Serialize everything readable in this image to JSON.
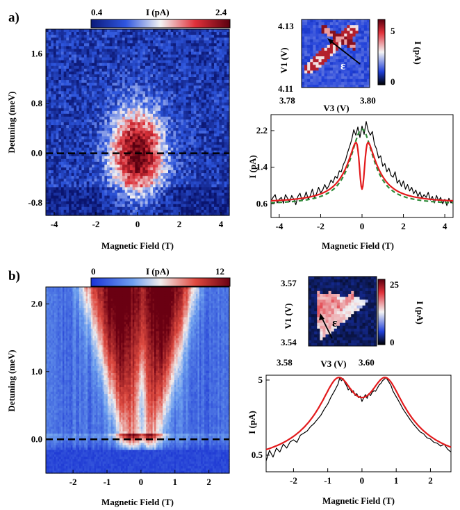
{
  "chart_data": [
    {
      "id": "a_map",
      "type": "heatmap",
      "panel_label": "a)",
      "colorbar": {
        "title": "I (pA)",
        "min_label": "0.4",
        "max_label": "2.4",
        "range": [
          0.4,
          2.4
        ]
      },
      "xlabel": "Magnetic Field (T)",
      "ylabel": "Detuning (meV)",
      "xlim": [
        -4.4,
        4.4
      ],
      "ylim": [
        -1.0,
        2.0
      ],
      "xticks": [
        "-4",
        "-2",
        "0",
        "2",
        "4"
      ],
      "yticks": [
        "-0.8",
        "0.0",
        "0.8",
        "1.6"
      ],
      "dashed_line_y": 0.0,
      "peak": {
        "x_center": 0.0,
        "y_center": 0.0,
        "x_width": 0.9,
        "y_width": 0.5,
        "peak_value": 2.4,
        "background": 0.7
      }
    },
    {
      "id": "a_inset",
      "type": "heatmap",
      "xlabel": "V3 (V)",
      "ylabel": "V1 (V)",
      "xticks": [
        "3.78",
        "3.80"
      ],
      "yticks": [
        "4.13",
        "4.11"
      ],
      "colorbar": {
        "title": "I (pA)",
        "ticks": [
          "5",
          "0"
        ],
        "range": [
          0,
          6
        ]
      },
      "arrow_label": "ε"
    },
    {
      "id": "a_trace",
      "type": "line",
      "xlabel": "Magnetic Field (T)",
      "ylabel": "I (pA)",
      "xlim": [
        -4.4,
        4.4
      ],
      "ylim": [
        0.3,
        2.55
      ],
      "xticks": [
        "-4",
        "-2",
        "0",
        "2",
        "4"
      ],
      "yticks": [
        "0.6",
        "1.4",
        "2.2"
      ],
      "series": [
        {
          "role": "data",
          "color": "#000000",
          "values": [
            [
              -4.4,
              0.66
            ],
            [
              -4.3,
              0.74
            ],
            [
              -4.2,
              0.8
            ],
            [
              -4.1,
              0.62
            ],
            [
              -4.0,
              0.7
            ],
            [
              -3.9,
              0.74
            ],
            [
              -3.8,
              0.61
            ],
            [
              -3.7,
              0.8
            ],
            [
              -3.6,
              0.72
            ],
            [
              -3.5,
              0.64
            ],
            [
              -3.4,
              0.78
            ],
            [
              -3.3,
              0.7
            ],
            [
              -3.2,
              0.58
            ],
            [
              -3.1,
              0.76
            ],
            [
              -3.0,
              0.83
            ],
            [
              -2.9,
              0.67
            ],
            [
              -2.8,
              0.72
            ],
            [
              -2.7,
              0.86
            ],
            [
              -2.6,
              0.7
            ],
            [
              -2.5,
              0.78
            ],
            [
              -2.4,
              0.92
            ],
            [
              -2.3,
              0.74
            ],
            [
              -2.2,
              0.82
            ],
            [
              -2.1,
              0.96
            ],
            [
              -2.0,
              0.84
            ],
            [
              -1.9,
              0.9
            ],
            [
              -1.8,
              1.02
            ],
            [
              -1.7,
              0.92
            ],
            [
              -1.6,
              1.0
            ],
            [
              -1.5,
              1.12
            ],
            [
              -1.4,
              1.06
            ],
            [
              -1.3,
              1.2
            ],
            [
              -1.2,
              1.16
            ],
            [
              -1.1,
              1.32
            ],
            [
              -1.0,
              1.3
            ],
            [
              -0.9,
              1.46
            ],
            [
              -0.8,
              1.55
            ],
            [
              -0.7,
              1.72
            ],
            [
              -0.6,
              1.85
            ],
            [
              -0.5,
              2.0
            ],
            [
              -0.4,
              2.22
            ],
            [
              -0.3,
              2.1
            ],
            [
              -0.2,
              2.28
            ],
            [
              -0.1,
              2.05
            ],
            [
              0.0,
              2.3
            ],
            [
              0.1,
              2.12
            ],
            [
              0.2,
              2.4
            ],
            [
              0.3,
              2.2
            ],
            [
              0.4,
              2.1
            ],
            [
              0.5,
              2.18
            ],
            [
              0.6,
              1.9
            ],
            [
              0.7,
              1.8
            ],
            [
              0.8,
              1.6
            ],
            [
              0.9,
              1.65
            ],
            [
              1.0,
              1.42
            ],
            [
              1.1,
              1.48
            ],
            [
              1.2,
              1.3
            ],
            [
              1.3,
              1.38
            ],
            [
              1.4,
              1.22
            ],
            [
              1.5,
              1.18
            ],
            [
              1.6,
              1.3
            ],
            [
              1.7,
              1.05
            ],
            [
              1.8,
              1.12
            ],
            [
              1.9,
              0.98
            ],
            [
              2.0,
              1.1
            ],
            [
              2.1,
              0.92
            ],
            [
              2.2,
              1.02
            ],
            [
              2.3,
              0.88
            ],
            [
              2.4,
              0.96
            ],
            [
              2.5,
              0.82
            ],
            [
              2.6,
              0.9
            ],
            [
              2.7,
              0.76
            ],
            [
              2.8,
              0.86
            ],
            [
              2.9,
              0.72
            ],
            [
              3.0,
              0.8
            ],
            [
              3.1,
              0.74
            ],
            [
              3.2,
              0.85
            ],
            [
              3.3,
              0.68
            ],
            [
              3.4,
              0.76
            ],
            [
              3.5,
              0.62
            ],
            [
              3.6,
              0.78
            ],
            [
              3.7,
              0.66
            ],
            [
              3.8,
              0.74
            ],
            [
              3.9,
              0.6
            ],
            [
              4.0,
              0.7
            ],
            [
              4.1,
              0.56
            ],
            [
              4.2,
              0.72
            ],
            [
              4.3,
              0.62
            ],
            [
              4.4,
              0.68
            ]
          ]
        },
        {
          "role": "fit",
          "color": "#e31a1c",
          "model": "double_lorentzian_dip",
          "params": {
            "base": 0.62,
            "amp": 1.6,
            "width": 0.75,
            "dip_depth": 1.3,
            "dip_width": 0.12
          }
        },
        {
          "role": "fit",
          "color": "#2e8b3a",
          "dashed": true,
          "model": "lorentzian",
          "params": {
            "base": 0.58,
            "amp": 1.65,
            "width": 0.7
          }
        }
      ]
    },
    {
      "id": "b_map",
      "type": "heatmap",
      "panel_label": "b)",
      "colorbar": {
        "title": "I (pA)",
        "min_label": "0",
        "max_label": "12",
        "range": [
          0,
          12
        ]
      },
      "xlabel": "Magnetic Field (T)",
      "ylabel": "Detuning (meV)",
      "xlim": [
        -2.8,
        2.6
      ],
      "ylim": [
        -0.5,
        2.25
      ],
      "xticks": [
        "-2",
        "-1",
        "0",
        "1",
        "2"
      ],
      "yticks": [
        "0.0",
        "1.0",
        "2.0"
      ],
      "dashed_line_y": 0.0
    },
    {
      "id": "b_inset",
      "type": "heatmap",
      "xlabel": "V3 (V)",
      "ylabel": "V1 (V)",
      "xticks": [
        "3.58",
        "3.60"
      ],
      "yticks": [
        "3.57",
        "3.54"
      ],
      "colorbar": {
        "title": "I (pA)",
        "ticks": [
          "25",
          "0"
        ],
        "range": [
          0,
          28
        ]
      },
      "arrow_label": "ε"
    },
    {
      "id": "b_trace",
      "type": "line",
      "xlabel": "Magnetic Field (T)",
      "ylabel": "I (pA)",
      "xlim": [
        -2.8,
        2.6
      ],
      "ylim": [
        0.3,
        5.8
      ],
      "xticks": [
        "-2",
        "-1",
        "0",
        "1",
        "2"
      ],
      "yticks": [
        "0.5",
        "5"
      ],
      "series": [
        {
          "role": "data",
          "color": "#000000",
          "values": [
            [
              -2.8,
              0.42
            ],
            [
              -2.7,
              0.58
            ],
            [
              -2.6,
              0.47
            ],
            [
              -2.5,
              0.62
            ],
            [
              -2.4,
              0.55
            ],
            [
              -2.3,
              0.7
            ],
            [
              -2.2,
              0.62
            ],
            [
              -2.1,
              0.75
            ],
            [
              -2.0,
              0.8
            ],
            [
              -1.9,
              0.74
            ],
            [
              -1.8,
              0.92
            ],
            [
              -1.7,
              0.98
            ],
            [
              -1.6,
              1.05
            ],
            [
              -1.5,
              1.2
            ],
            [
              -1.4,
              1.32
            ],
            [
              -1.3,
              1.5
            ],
            [
              -1.2,
              1.7
            ],
            [
              -1.1,
              2.05
            ],
            [
              -1.0,
              2.4
            ],
            [
              -0.9,
              3.0
            ],
            [
              -0.8,
              3.6
            ],
            [
              -0.7,
              4.4
            ],
            [
              -0.65,
              5.35
            ],
            [
              -0.6,
              4.9
            ],
            [
              -0.55,
              5.25
            ],
            [
              -0.5,
              4.6
            ],
            [
              -0.45,
              4.2
            ],
            [
              -0.4,
              3.7
            ],
            [
              -0.35,
              3.9
            ],
            [
              -0.3,
              3.4
            ],
            [
              -0.25,
              3.6
            ],
            [
              -0.2,
              3.1
            ],
            [
              -0.15,
              3.3
            ],
            [
              -0.1,
              2.9
            ],
            [
              -0.05,
              3.05
            ],
            [
              0.0,
              2.6
            ],
            [
              0.05,
              2.9
            ],
            [
              0.1,
              3.2
            ],
            [
              0.15,
              2.85
            ],
            [
              0.2,
              3.3
            ],
            [
              0.25,
              3.1
            ],
            [
              0.3,
              3.45
            ],
            [
              0.35,
              3.6
            ],
            [
              0.4,
              3.55
            ],
            [
              0.45,
              3.9
            ],
            [
              0.5,
              4.3
            ],
            [
              0.55,
              4.5
            ],
            [
              0.6,
              4.9
            ],
            [
              0.65,
              5.1
            ],
            [
              0.7,
              5.4
            ],
            [
              0.75,
              5.0
            ],
            [
              0.8,
              4.6
            ],
            [
              0.85,
              4.2
            ],
            [
              0.9,
              3.6
            ],
            [
              1.0,
              3.0
            ],
            [
              1.1,
              2.5
            ],
            [
              1.2,
              2.05
            ],
            [
              1.3,
              1.75
            ],
            [
              1.4,
              1.5
            ],
            [
              1.5,
              1.3
            ],
            [
              1.6,
              1.15
            ],
            [
              1.7,
              1.02
            ],
            [
              1.8,
              0.96
            ],
            [
              1.9,
              0.85
            ],
            [
              2.0,
              0.82
            ],
            [
              2.1,
              0.74
            ],
            [
              2.2,
              0.72
            ],
            [
              2.3,
              0.66
            ],
            [
              2.4,
              0.7
            ],
            [
              2.5,
              0.6
            ],
            [
              2.6,
              0.55
            ]
          ]
        },
        {
          "role": "fit",
          "color": "#e31a1c",
          "model": "double_lorentzian",
          "params": {
            "base": 0.35,
            "amp": 4.9,
            "width": 0.42,
            "center": 0.68
          }
        }
      ]
    }
  ]
}
